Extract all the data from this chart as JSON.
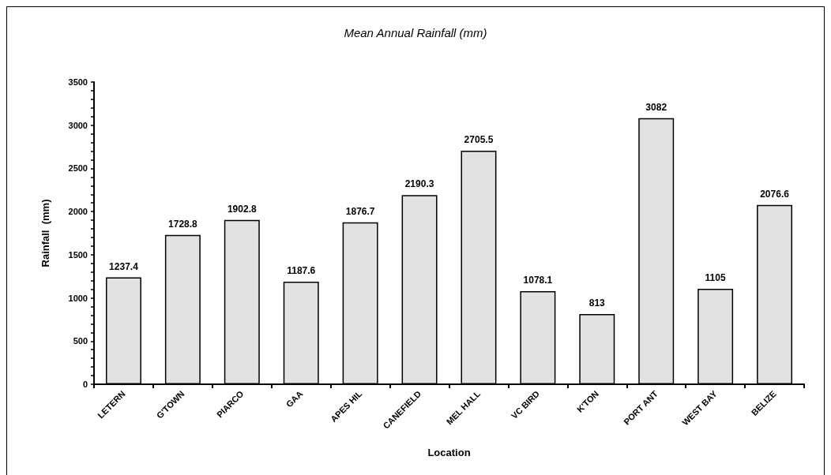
{
  "chart_data": {
    "type": "bar",
    "title": "Mean Annual Rainfall (mm)",
    "xlabel": "Location",
    "ylabel": "Rainfall  (mm)",
    "categories": [
      "LETERN",
      "G'TOWN",
      "PIARCO",
      "GAA",
      "APES HIL",
      "CANEFIELD",
      "MEL HALL",
      "VC BIRD",
      "K'TON",
      "PORT ANT",
      "WEST BAY",
      "BELIZE"
    ],
    "values": [
      1237.4,
      1728.8,
      1902.8,
      1187.6,
      1876.7,
      2190.3,
      2705.5,
      1078.1,
      813,
      3082,
      1105,
      2076.6
    ],
    "color": "#e2e2e2",
    "ylim": [
      0,
      3500
    ],
    "yticks": [
      0,
      500,
      1000,
      1500,
      2000,
      2500,
      3000,
      3500
    ],
    "grid": false,
    "data_labels": true
  }
}
